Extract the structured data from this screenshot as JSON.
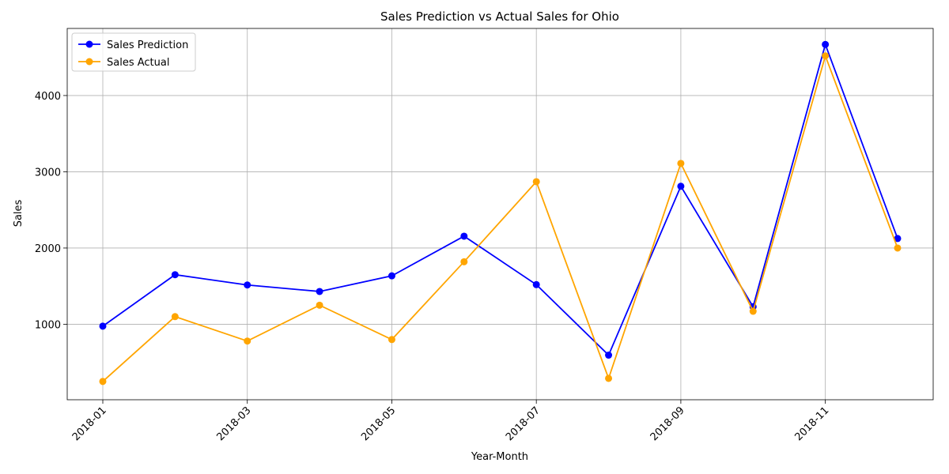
{
  "chart_data": {
    "type": "line",
    "title": "Sales Prediction vs Actual Sales for Ohio",
    "xlabel": "Year-Month",
    "ylabel": "Sales",
    "x": [
      "2018-01",
      "2018-02",
      "2018-03",
      "2018-04",
      "2018-05",
      "2018-06",
      "2018-07",
      "2018-08",
      "2018-09",
      "2018-10",
      "2018-11",
      "2018-12"
    ],
    "x_tick_labels": [
      "2018-01",
      "2018-03",
      "2018-05",
      "2018-07",
      "2018-09",
      "2018-11"
    ],
    "y_ticks": [
      1000,
      2000,
      3000,
      4000
    ],
    "ylim": [
      10,
      4880
    ],
    "grid": true,
    "legend_position": "upper-left",
    "series": [
      {
        "name": "Sales Prediction",
        "color": "#0000ff",
        "values": [
          975,
          1650,
          1515,
          1430,
          1635,
          2155,
          1520,
          595,
          2810,
          1230,
          4670,
          2125
        ]
      },
      {
        "name": "Sales Actual",
        "color": "#ffa500",
        "values": [
          250,
          1100,
          780,
          1250,
          800,
          1820,
          2870,
          290,
          3110,
          1170,
          4520,
          2000
        ]
      }
    ]
  }
}
